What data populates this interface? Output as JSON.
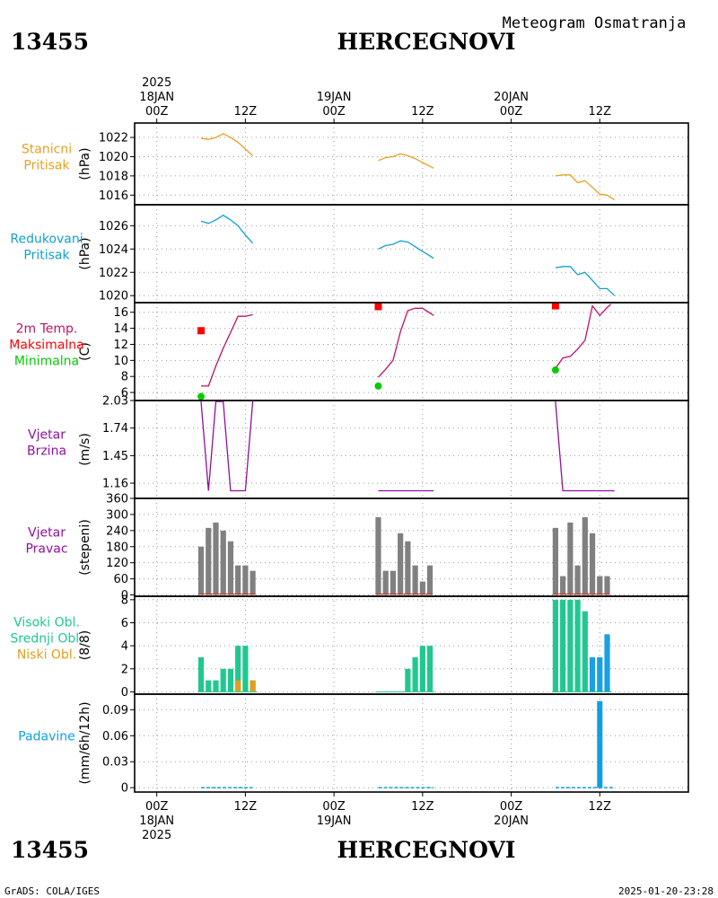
{
  "header": {
    "station_id": "13455",
    "station_name": "HERCEGNOVI",
    "subtitle": "Meteogram Osmatranja"
  },
  "footer": {
    "left": "GrADS: COLA/IGES",
    "right": "2025-01-20-23:28"
  },
  "colors": {
    "station_pressure": "#e8a020",
    "reduced_pressure": "#10a0d0",
    "temp": "#c0106a",
    "tmax": "#ff0000",
    "tmin": "#00cc00",
    "wind": "#9010a0",
    "bars_gray": "#808080",
    "cloud_high": "#20c890",
    "cloud_mid": "#1aa0e0",
    "cloud_low": "#e0a020",
    "precip": "#10a0e0"
  },
  "time_axis": {
    "top_labels": [
      {
        "x": 0,
        "lines": [
          "2025",
          "18JAN",
          "00Z"
        ]
      },
      {
        "x": 12,
        "lines": [
          "12Z"
        ]
      },
      {
        "x": 24,
        "lines": [
          "19JAN",
          "00Z"
        ]
      },
      {
        "x": 36,
        "lines": [
          "12Z"
        ]
      },
      {
        "x": 48,
        "lines": [
          "20JAN",
          "00Z"
        ]
      },
      {
        "x": 60,
        "lines": [
          "12Z"
        ]
      }
    ],
    "bottom_labels": [
      {
        "x": 0,
        "lines": [
          "00Z",
          "18JAN",
          "2025"
        ]
      },
      {
        "x": 12,
        "lines": [
          "12Z"
        ]
      },
      {
        "x": 24,
        "lines": [
          "00Z",
          "19JAN"
        ]
      },
      {
        "x": 36,
        "lines": [
          "12Z"
        ]
      },
      {
        "x": 48,
        "lines": [
          "00Z",
          "20JAN"
        ]
      },
      {
        "x": 60,
        "lines": [
          "12Z"
        ]
      }
    ]
  },
  "chart_data": [
    {
      "type": "line",
      "panel": "station_pressure",
      "side_labels": [
        {
          "text": "Stanicni",
          "color": "#e8a020"
        },
        {
          "text": "Pritisak",
          "color": "#e8a020"
        }
      ],
      "ylabel": "(hPa)",
      "ylim": [
        1015,
        1023.5
      ],
      "yticks": [
        1016,
        1018,
        1020,
        1022
      ],
      "series": [
        {
          "color": "#e8a020",
          "segments": [
            [
              [
                6,
                1021.9
              ],
              [
                7,
                1021.8
              ],
              [
                8,
                1022.0
              ],
              [
                9,
                1022.4
              ],
              [
                10,
                1022.0
              ],
              [
                11,
                1021.5
              ],
              [
                12,
                1020.8
              ],
              [
                13,
                1020.1
              ]
            ],
            [
              [
                30,
                1019.6
              ],
              [
                31,
                1019.9
              ],
              [
                32,
                1020.0
              ],
              [
                33,
                1020.3
              ],
              [
                34,
                1020.1
              ],
              [
                35,
                1019.8
              ],
              [
                36,
                1019.4
              ],
              [
                37,
                1019.0
              ],
              [
                37.5,
                1018.8
              ]
            ],
            [
              [
                54,
                1018.0
              ],
              [
                55,
                1018.1
              ],
              [
                56,
                1018.1
              ],
              [
                57,
                1017.3
              ],
              [
                58,
                1017.5
              ],
              [
                59,
                1016.8
              ],
              [
                60,
                1016.1
              ],
              [
                61,
                1016.0
              ],
              [
                62,
                1015.5
              ]
            ]
          ]
        }
      ]
    },
    {
      "type": "line",
      "panel": "reduced_pressure",
      "side_labels": [
        {
          "text": "Redukovani",
          "color": "#10a0d0"
        },
        {
          "text": "Pritisak",
          "color": "#10a0d0"
        }
      ],
      "ylabel": "(hPa)",
      "ylim": [
        1019.4,
        1027.8
      ],
      "yticks": [
        1020,
        1022,
        1024,
        1026
      ],
      "series": [
        {
          "color": "#10a0d0",
          "segments": [
            [
              [
                6,
                1026.4
              ],
              [
                7,
                1026.2
              ],
              [
                8,
                1026.5
              ],
              [
                9,
                1026.9
              ],
              [
                10,
                1026.5
              ],
              [
                11,
                1026.0
              ],
              [
                12,
                1025.2
              ],
              [
                13,
                1024.5
              ]
            ],
            [
              [
                30,
                1024.0
              ],
              [
                31,
                1024.3
              ],
              [
                32,
                1024.4
              ],
              [
                33,
                1024.7
              ],
              [
                34,
                1024.6
              ],
              [
                35,
                1024.2
              ],
              [
                36,
                1023.8
              ],
              [
                37,
                1023.4
              ],
              [
                37.5,
                1023.2
              ]
            ],
            [
              [
                54,
                1022.4
              ],
              [
                55,
                1022.5
              ],
              [
                56,
                1022.5
              ],
              [
                57,
                1021.8
              ],
              [
                58,
                1022.0
              ],
              [
                59,
                1021.3
              ],
              [
                60,
                1020.6
              ],
              [
                61,
                1020.6
              ],
              [
                62,
                1020.0
              ]
            ]
          ]
        }
      ]
    },
    {
      "type": "line",
      "panel": "temperature",
      "side_labels": [
        {
          "text": "2m Temp.",
          "color": "#c0106a"
        },
        {
          "text": "Maksimalna",
          "color": "#ff0000"
        },
        {
          "text": "Minimalna",
          "color": "#00cc00"
        }
      ],
      "ylabel": "(C)",
      "ylim": [
        5,
        17.2
      ],
      "yticks": [
        6,
        8,
        10,
        12,
        14,
        16
      ],
      "series": [
        {
          "color": "#c0106a",
          "segments": [
            [
              [
                6,
                6.8
              ],
              [
                7,
                6.8
              ],
              [
                8,
                9.3
              ],
              [
                9,
                11.5
              ],
              [
                10,
                13.5
              ],
              [
                11,
                15.5
              ],
              [
                12,
                15.5
              ],
              [
                13,
                15.7
              ]
            ],
            [
              [
                30,
                7.9
              ],
              [
                31,
                8.9
              ],
              [
                32,
                10.0
              ],
              [
                33,
                13.6
              ],
              [
                34,
                16.2
              ],
              [
                35,
                16.5
              ],
              [
                36,
                16.5
              ],
              [
                37,
                15.9
              ],
              [
                37.5,
                15.6
              ]
            ],
            [
              [
                54,
                9.0
              ],
              [
                55,
                10.3
              ],
              [
                56,
                10.5
              ],
              [
                57,
                11.4
              ],
              [
                58,
                12.5
              ],
              [
                59,
                16.8
              ],
              [
                60,
                15.6
              ],
              [
                61,
                16.6
              ],
              [
                61.5,
                17.0
              ]
            ]
          ]
        }
      ],
      "markers_max": [
        [
          6,
          13.7
        ],
        [
          30,
          16.7
        ],
        [
          54,
          16.8
        ]
      ],
      "markers_min": [
        [
          6,
          5.5
        ],
        [
          30,
          6.8
        ],
        [
          54,
          8.8
        ]
      ]
    },
    {
      "type": "line",
      "panel": "wind_speed",
      "side_labels": [
        {
          "text": "Vjetar",
          "color": "#9010a0"
        },
        {
          "text": "Brzina",
          "color": "#9010a0"
        }
      ],
      "ylabel": "(m/s)",
      "ylim": [
        1.0,
        2.03
      ],
      "yticks": [
        1.16,
        1.45,
        1.74,
        2.03
      ],
      "ytick_labels": [
        "1.16",
        "1.45",
        "1.74",
        "2.03"
      ],
      "series": [
        {
          "color": "#9010a0",
          "segments": [
            [
              [
                6,
                2.02
              ],
              [
                7,
                1.08
              ],
              [
                8,
                2.02
              ],
              [
                9,
                2.02
              ],
              [
                10,
                1.08
              ],
              [
                11,
                1.08
              ],
              [
                12,
                1.08
              ],
              [
                13,
                2.02
              ]
            ],
            [
              [
                30,
                1.08
              ],
              [
                31,
                1.08
              ],
              [
                32,
                1.08
              ],
              [
                33,
                1.08
              ],
              [
                34,
                1.08
              ],
              [
                35,
                1.08
              ],
              [
                36,
                1.08
              ],
              [
                37,
                1.08
              ],
              [
                37.5,
                1.08
              ]
            ],
            [
              [
                54,
                2.02
              ],
              [
                55,
                1.08
              ],
              [
                56,
                1.08
              ],
              [
                57,
                1.08
              ],
              [
                58,
                1.08
              ],
              [
                59,
                1.08
              ],
              [
                60,
                1.08
              ],
              [
                61,
                1.08
              ],
              [
                62,
                1.08
              ]
            ]
          ]
        }
      ]
    },
    {
      "type": "bar",
      "panel": "wind_direction",
      "side_labels": [
        {
          "text": "Vjetar",
          "color": "#9010a0"
        },
        {
          "text": "Pravac",
          "color": "#9010a0"
        }
      ],
      "ylabel": "(stepeni)",
      "ylim": [
        -5,
        360
      ],
      "yticks": [
        0,
        60,
        120,
        180,
        240,
        300,
        360
      ],
      "bar_color": "#808080",
      "x": [
        6,
        7,
        8,
        9,
        10,
        11,
        12,
        13,
        30,
        31,
        32,
        33,
        34,
        35,
        36,
        37,
        54,
        55,
        56,
        57,
        58,
        59,
        60,
        61
      ],
      "values": [
        180,
        250,
        270,
        240,
        200,
        110,
        110,
        90,
        290,
        90,
        90,
        230,
        200,
        110,
        50,
        110,
        250,
        70,
        270,
        110,
        290,
        230,
        70,
        70
      ]
    },
    {
      "type": "bar",
      "panel": "clouds",
      "side_labels": [
        {
          "text": "Visoki Obl.",
          "color": "#20c890"
        },
        {
          "text": "Srednji Obl.",
          "color": "#20c890"
        },
        {
          "text": "Niski Obl.",
          "color": "#e0a020"
        }
      ],
      "ylabel": "(8/8)",
      "ylim": [
        -0.2,
        8.3
      ],
      "yticks": [
        0,
        2,
        4,
        6,
        8
      ],
      "series": [
        {
          "name": "Visoki Obl.",
          "color": "#20c890",
          "x": [
            6,
            7,
            8,
            9,
            10,
            11,
            12,
            13,
            30,
            31,
            32,
            33,
            34,
            35,
            36,
            37,
            54,
            55,
            56,
            57,
            58,
            59,
            60,
            61
          ],
          "values": [
            3,
            1,
            1,
            2,
            2,
            4,
            4,
            1,
            0,
            0,
            0,
            0,
            2,
            3,
            4,
            4,
            8,
            8,
            8,
            8,
            7,
            3,
            3,
            0
          ]
        },
        {
          "name": "Srednji Obl.",
          "color": "#1aa0e0",
          "x": [
            6,
            7,
            8,
            9,
            10,
            11,
            12,
            13,
            30,
            31,
            32,
            33,
            34,
            35,
            36,
            37,
            54,
            55,
            56,
            57,
            58,
            59,
            60,
            61
          ],
          "values": [
            0,
            0,
            0,
            0,
            0,
            0,
            0,
            0,
            0,
            0,
            0,
            0,
            0,
            0,
            0,
            0,
            0,
            0,
            0,
            0,
            0,
            3,
            3,
            5
          ]
        },
        {
          "name": "Niski Obl.",
          "color": "#e0a020",
          "x": [
            6,
            7,
            8,
            9,
            10,
            11,
            12,
            13,
            30,
            31,
            32,
            33,
            34,
            35,
            36,
            37,
            54,
            55,
            56,
            57,
            58,
            59,
            60,
            61
          ],
          "values": [
            0,
            0,
            0,
            0,
            0,
            1,
            0,
            1,
            0,
            0,
            0,
            0,
            0,
            0,
            0,
            0,
            0,
            0,
            0,
            0,
            0,
            0,
            0,
            0
          ]
        }
      ]
    },
    {
      "type": "bar",
      "panel": "precipitation",
      "side_labels": [
        {
          "text": "Padavine",
          "color": "#10a0e0"
        }
      ],
      "ylabel": "(mm/6h/12h)",
      "ylim": [
        -0.005,
        0.108
      ],
      "yticks": [
        0,
        0.03,
        0.06,
        0.09
      ],
      "ytick_labels": [
        "0",
        "0.03",
        "0.06",
        "0.09"
      ],
      "bar_color": "#10a0e0",
      "baseline_segments": [
        [
          6,
          13
        ],
        [
          30,
          37.5
        ],
        [
          54,
          62
        ]
      ],
      "x": [
        60
      ],
      "values": [
        0.1
      ]
    }
  ]
}
